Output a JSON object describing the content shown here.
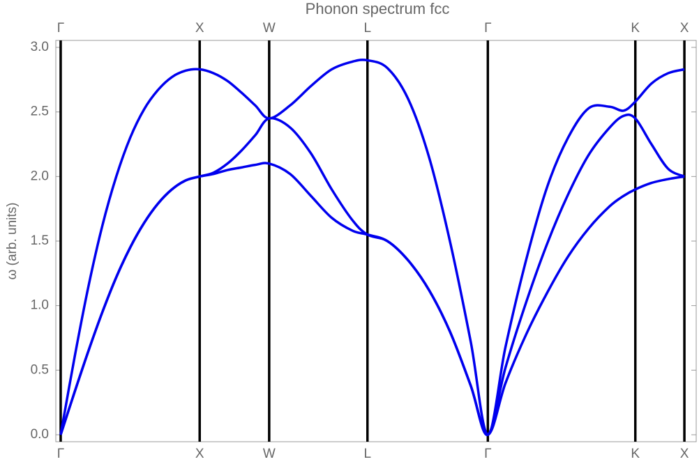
{
  "chart_data": {
    "type": "line",
    "title": "Phonon spectrum fcc",
    "y_label": "ω (arb. units)",
    "x": [
      0,
      0.1,
      0.2,
      0.3,
      0.4,
      0.5,
      0.6,
      0.7,
      0.8,
      0.9,
      1.0,
      1.1,
      1.2,
      1.3,
      1.4,
      1.5,
      1.65,
      1.8,
      1.95,
      2.1,
      2.207,
      2.35,
      2.5,
      2.65,
      2.8,
      2.95,
      3.073,
      3.2,
      3.35,
      3.5,
      3.65,
      3.8,
      3.95,
      4.05,
      4.134,
      4.25,
      4.37,
      4.487
    ],
    "series": [
      {
        "color": "#0000ee",
        "values": [
          0,
          0.33,
          0.65,
          0.95,
          1.22,
          1.45,
          1.64,
          1.79,
          1.9,
          1.97,
          2.0,
          2.02,
          2.05,
          2.07,
          2.09,
          2.1,
          2.02,
          1.85,
          1.68,
          1.58,
          1.55,
          1.5,
          1.35,
          1.12,
          0.8,
          0.38,
          0,
          0.4,
          0.78,
          1.1,
          1.38,
          1.6,
          1.77,
          1.85,
          1.9,
          1.95,
          1.98,
          2.0
        ]
      },
      {
        "color": "#0000ee",
        "values": [
          0,
          0.33,
          0.65,
          0.95,
          1.22,
          1.45,
          1.64,
          1.79,
          1.9,
          1.97,
          2.0,
          2.03,
          2.1,
          2.2,
          2.32,
          2.45,
          2.38,
          2.18,
          1.9,
          1.66,
          1.55,
          1.5,
          1.35,
          1.12,
          0.8,
          0.38,
          0,
          0.52,
          1.03,
          1.48,
          1.86,
          2.17,
          2.38,
          2.47,
          2.45,
          2.25,
          2.06,
          2.0
        ]
      },
      {
        "color": "#0000ee",
        "values": [
          0,
          0.6,
          1.15,
          1.62,
          2.0,
          2.3,
          2.52,
          2.67,
          2.77,
          2.82,
          2.83,
          2.8,
          2.74,
          2.65,
          2.55,
          2.45,
          2.55,
          2.7,
          2.83,
          2.89,
          2.9,
          2.84,
          2.6,
          2.15,
          1.5,
          0.72,
          0,
          0.68,
          1.36,
          1.92,
          2.3,
          2.53,
          2.54,
          2.51,
          2.58,
          2.72,
          2.8,
          2.83
        ]
      }
    ],
    "xlim": [
      -0.035,
      4.572
    ],
    "xticks": [
      {
        "value": 0,
        "label": "Γ"
      },
      {
        "value": 1.0,
        "label": "X"
      },
      {
        "value": 1.5,
        "label": "W"
      },
      {
        "value": 2.207,
        "label": "L"
      },
      {
        "value": 3.073,
        "label": "Γ"
      },
      {
        "value": 4.134,
        "label": "K"
      },
      {
        "value": 4.487,
        "label": "X"
      }
    ],
    "ylim": [
      -0.054,
      3.054
    ],
    "yticks": [
      {
        "value": 0,
        "label": "0.0"
      },
      0.5,
      {
        "value": 1,
        "label": "1.0"
      },
      1.5,
      {
        "value": 2,
        "label": "2.0"
      },
      2.5,
      {
        "value": 3,
        "label": "3.0"
      }
    ],
    "grid_x": true
  }
}
